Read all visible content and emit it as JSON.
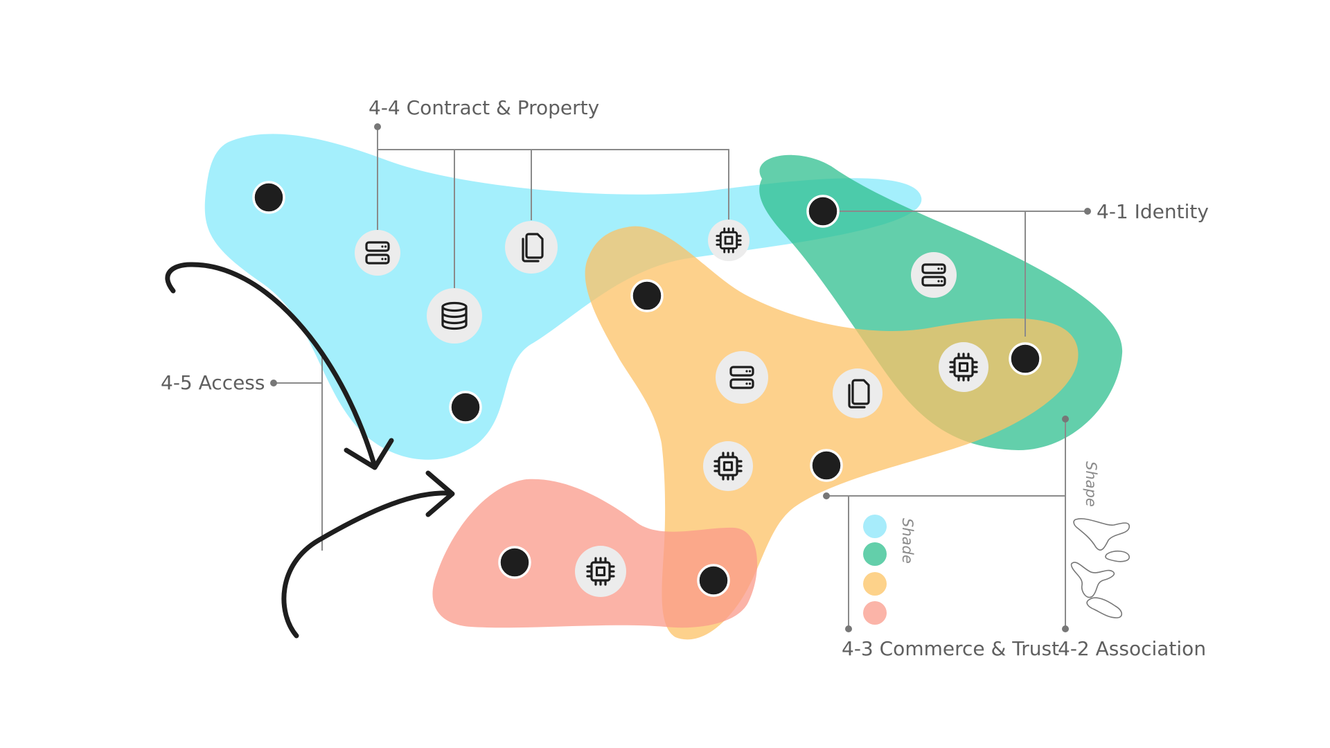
{
  "diagram": {
    "groups": [
      {
        "id": "4-4",
        "label": "4-4 Contract & Property",
        "color": "#86e9fb"
      },
      {
        "id": "4-1",
        "label": "4-1 Identity",
        "color": "#2fbf8f"
      },
      {
        "id": "4-3",
        "label": "4-3 Commerce & Trust",
        "color": "#fcc266"
      },
      {
        "id": "4-2",
        "label": "4-2 Association",
        "color": "#2fbf8f"
      },
      {
        "id": "4-5",
        "label": "4-5 Access",
        "color": "#fa9a8a"
      }
    ],
    "legend": {
      "shade_label": "Shade",
      "shape_label": "Shape",
      "swatches": [
        "#a7ecfb",
        "#63cfaa",
        "#fdd28a",
        "#fbb4a8"
      ]
    },
    "icons": [
      "server-icon",
      "database-icon",
      "documents-icon",
      "chip-icon"
    ]
  }
}
